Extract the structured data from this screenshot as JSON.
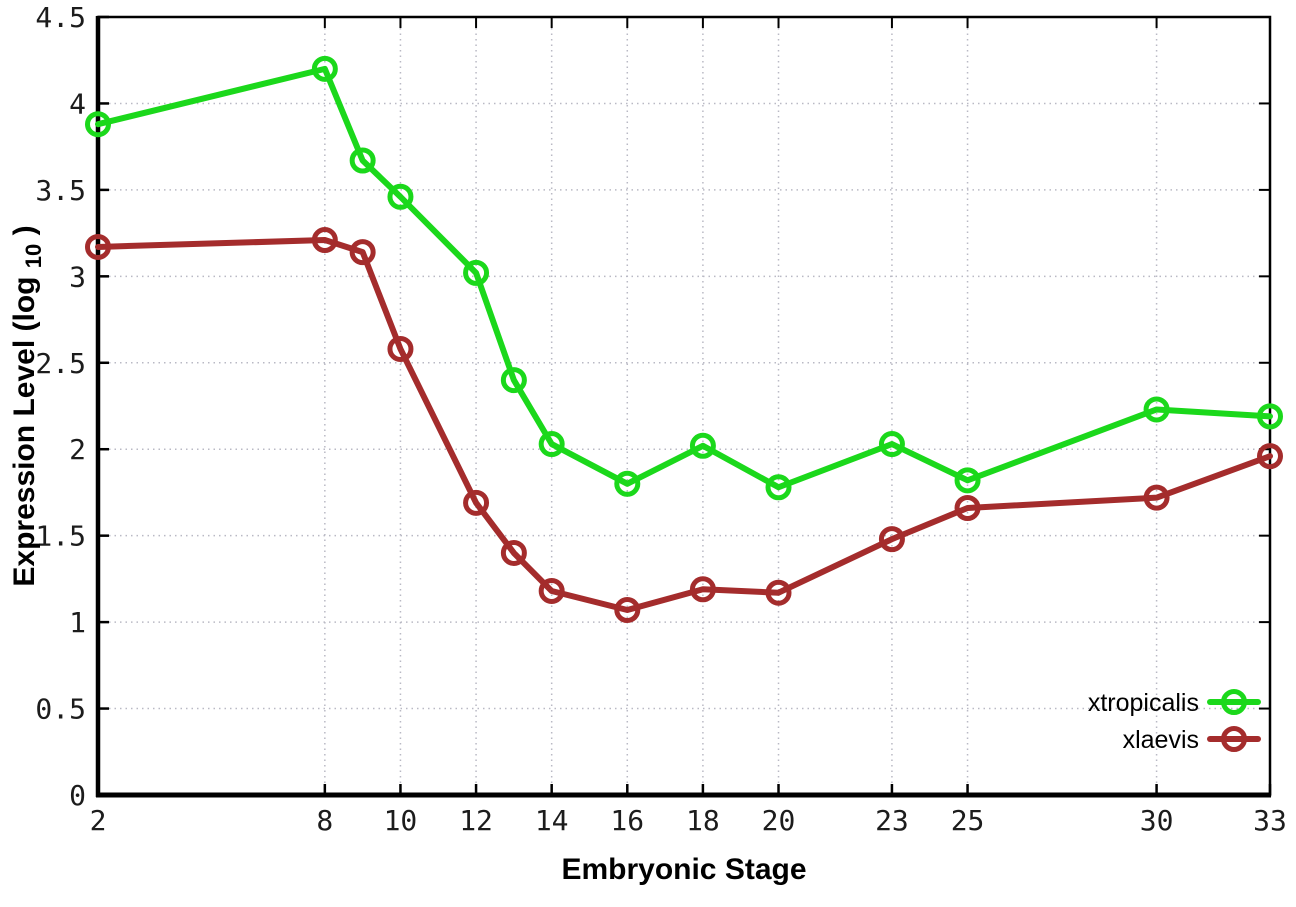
{
  "chart_data": {
    "type": "line",
    "title": "",
    "xlabel": "Embryonic Stage",
    "ylabel": "Expression Level (log10)",
    "ylabel_parts": {
      "pre": "Expression Level (log",
      "sub": "10",
      "post": ")"
    },
    "xlim": [
      2,
      33
    ],
    "ylim": [
      0,
      4.5
    ],
    "grid": true,
    "grid_style": "dotted",
    "legend_position": "inside-right-bottom",
    "x": [
      2,
      8,
      9,
      10,
      12,
      13,
      14,
      16,
      18,
      20,
      23,
      25,
      30,
      33
    ],
    "xtick_values": [
      2,
      8,
      10,
      12,
      14,
      16,
      18,
      20,
      23,
      25,
      30,
      33
    ],
    "xtick_labels": [
      "2",
      "8",
      "10",
      "12",
      "14",
      "16",
      "18",
      "20",
      "23",
      "25",
      "30",
      "33"
    ],
    "ytick_values": [
      0,
      0.5,
      1,
      1.5,
      2,
      2.5,
      3,
      3.5,
      4,
      4.5
    ],
    "ytick_labels": [
      "0",
      "0.5",
      "1",
      "1.5",
      "2",
      "2.5",
      "3",
      "3.5",
      "4",
      "4.5"
    ],
    "series": [
      {
        "name": "xtropicalis",
        "color": "#1bd81b",
        "marker": "open-circle",
        "values": [
          3.88,
          4.2,
          3.67,
          3.46,
          3.02,
          2.4,
          2.03,
          1.8,
          2.02,
          1.78,
          2.03,
          1.82,
          2.23,
          2.19
        ]
      },
      {
        "name": "xlaevis",
        "color": "#a42c2c",
        "marker": "open-circle",
        "values": [
          3.17,
          3.21,
          3.14,
          2.58,
          1.69,
          1.4,
          1.18,
          1.07,
          1.19,
          1.17,
          1.48,
          1.66,
          1.72,
          1.96
        ]
      }
    ],
    "colors": {
      "axis": "#000000",
      "grid": "#b9b9c4",
      "background": "#ffffff",
      "tick_text": "#1c1c1c"
    }
  }
}
